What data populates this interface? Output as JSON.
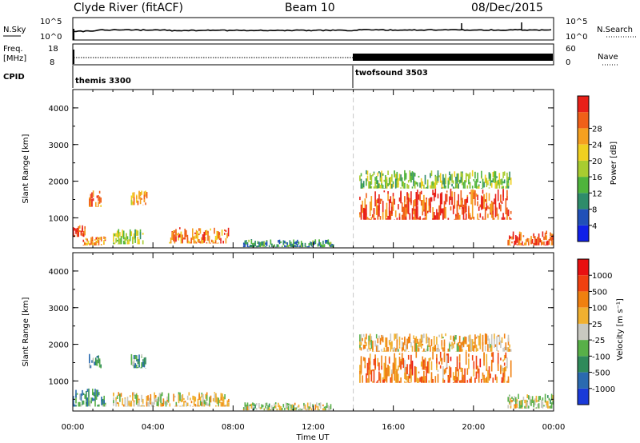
{
  "header": {
    "station": "Clyde River (fitACF)",
    "beam": "Beam 10",
    "date": "08/Dec/2015"
  },
  "param_panels": {
    "nsky_label": "N.Sky",
    "nsky_ticks": [
      "10^5",
      "10^0"
    ],
    "nsearch_label": "N.Search",
    "nsearch_ticks": [
      "10^5",
      "10^0"
    ],
    "freq_label": "Freq.",
    "freq_unit": "[MHz]",
    "freq_ticks": [
      "18",
      "8"
    ],
    "nave_label": "Nave",
    "nave_ticks": [
      "60",
      "0"
    ],
    "cpid_label": "CPID",
    "cpid_segments": [
      {
        "name": "themis 3300",
        "start_hour": 0,
        "end_hour": 14.0
      },
      {
        "name": "twofsound 3503",
        "start_hour": 14.0,
        "end_hour": 24
      }
    ]
  },
  "chart_data": [
    {
      "type": "heatmap",
      "name": "power",
      "ylabel": "Slant Range [km]",
      "ylim": [
        180,
        4500
      ],
      "yticks": [
        "1000",
        "2000",
        "3000",
        "4000"
      ],
      "xlim": [
        0,
        24
      ],
      "colorbar_label": "Power [dB]",
      "colorbar_ticks": [
        "4",
        "8",
        "12",
        "16",
        "20",
        "24",
        "28"
      ],
      "colorbar_colors": [
        "#1020e8",
        "#2050b8",
        "#2e8c6a",
        "#4fb43c",
        "#a8cc30",
        "#f0d020",
        "#f5a020",
        "#f06018",
        "#e82018"
      ],
      "mode_change_hour": 14.0,
      "regions": [
        {
          "t": [
            0.0,
            0.6
          ],
          "r": [
            480,
            800
          ],
          "level": 0.85
        },
        {
          "t": [
            0.8,
            1.4
          ],
          "r": [
            1300,
            1750
          ],
          "level": 0.8
        },
        {
          "t": [
            0.5,
            1.6
          ],
          "r": [
            250,
            500
          ],
          "level": 0.75
        },
        {
          "t": [
            2.9,
            3.7
          ],
          "r": [
            1350,
            1750
          ],
          "level": 0.7
        },
        {
          "t": [
            2.0,
            3.5
          ],
          "r": [
            280,
            700
          ],
          "level": 0.5
        },
        {
          "t": [
            4.8,
            7.8
          ],
          "r": [
            300,
            750
          ],
          "level": 0.78
        },
        {
          "t": [
            8.5,
            13.0
          ],
          "r": [
            200,
            420
          ],
          "level": 0.3
        },
        {
          "t": [
            14.3,
            21.9
          ],
          "r": [
            950,
            1800
          ],
          "level": 0.88
        },
        {
          "t": [
            14.3,
            21.9
          ],
          "r": [
            1800,
            2300
          ],
          "level": 0.45
        },
        {
          "t": [
            21.7,
            24.0
          ],
          "r": [
            250,
            650
          ],
          "level": 0.85
        }
      ]
    },
    {
      "type": "heatmap",
      "name": "velocity",
      "ylabel": "Slant Range [km]",
      "ylim": [
        180,
        4500
      ],
      "yticks": [
        "1000",
        "2000",
        "3000",
        "4000"
      ],
      "xlim": [
        0,
        24
      ],
      "xticks": [
        "00:00",
        "04:00",
        "08:00",
        "12:00",
        "16:00",
        "20:00",
        "00:00"
      ],
      "xlabel": "Time UT",
      "colorbar_label": "Velocity [m s⁻¹]",
      "colorbar_ticks": [
        "1000",
        "500",
        "100",
        "25",
        "-25",
        "-100",
        "-500",
        "-1000"
      ],
      "colorbar_colors": [
        "#1a3ad8",
        "#2a6ab0",
        "#2f8a5a",
        "#58b048",
        "#c8c8c0",
        "#f0b030",
        "#f08010",
        "#f04010",
        "#e81010"
      ],
      "mode_change_hour": 14.0,
      "regions": [
        {
          "t": [
            0.0,
            1.6
          ],
          "r": [
            300,
            800
          ],
          "level": 0.3
        },
        {
          "t": [
            0.8,
            1.4
          ],
          "r": [
            1350,
            1750
          ],
          "level": 0.3
        },
        {
          "t": [
            2.9,
            3.7
          ],
          "r": [
            1350,
            1750
          ],
          "level": 0.3
        },
        {
          "t": [
            2.0,
            7.8
          ],
          "r": [
            300,
            700
          ],
          "level": 0.55
        },
        {
          "t": [
            8.5,
            13.0
          ],
          "r": [
            200,
            420
          ],
          "level": 0.5
        },
        {
          "t": [
            14.3,
            21.9
          ],
          "r": [
            950,
            1800
          ],
          "level": 0.72
        },
        {
          "t": [
            14.3,
            21.9
          ],
          "r": [
            1800,
            2300
          ],
          "level": 0.6
        },
        {
          "t": [
            21.7,
            24.0
          ],
          "r": [
            250,
            650
          ],
          "level": 0.5
        }
      ]
    }
  ]
}
